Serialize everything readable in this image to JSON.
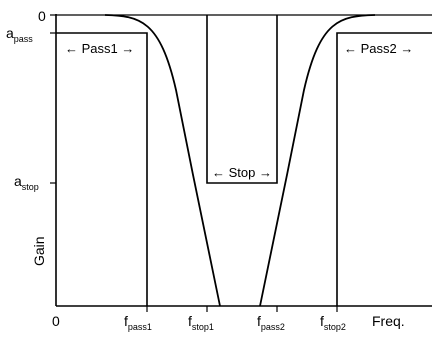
{
  "diagram": {
    "y_labels": {
      "zero": "0",
      "a_pass": {
        "base": "a",
        "sub": "pass"
      },
      "a_stop": {
        "base": "a",
        "sub": "stop"
      },
      "gain": "Gain"
    },
    "x_labels": {
      "zero": "0",
      "f_pass1": {
        "base": "f",
        "sub": "pass1"
      },
      "f_stop1": {
        "base": "f",
        "sub": "stop1"
      },
      "f_pass2": {
        "base": "f",
        "sub": "pass2"
      },
      "f_stop2": {
        "base": "f",
        "sub": "stop2"
      },
      "freq": "Freq."
    },
    "regions": {
      "pass1": "← Pass1 →",
      "stop": "← Stop →",
      "pass2": "← Pass2 →"
    },
    "line_color": "#000000",
    "background_color": "#ffffff"
  }
}
